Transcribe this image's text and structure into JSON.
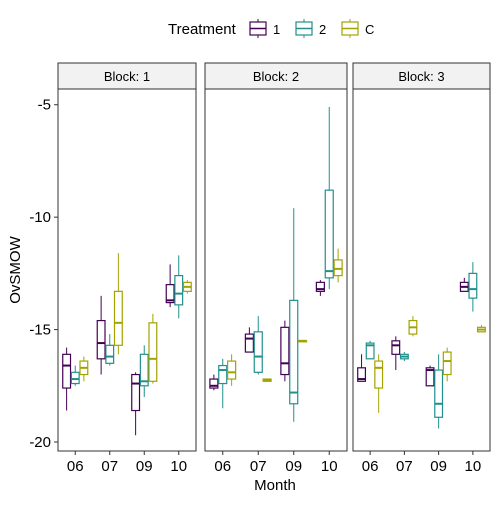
{
  "chart_data": {
    "type": "boxplot",
    "xlabel": "Month",
    "ylabel": "OvSMOW",
    "ylim": [
      -20.4,
      -4.3
    ],
    "y_ticks": [
      -5,
      -10,
      -15,
      -20
    ],
    "categories": [
      "06",
      "07",
      "09",
      "10"
    ],
    "legend": {
      "title": "Treatment",
      "position": "top",
      "entries": [
        {
          "name": "1",
          "color": "#440154"
        },
        {
          "name": "2",
          "color": "#21908C"
        },
        {
          "name": "C",
          "color": "#A3A300"
        }
      ]
    },
    "panels": [
      {
        "strip": "Block: 1",
        "boxes": [
          {
            "month": "06",
            "treatment": "1",
            "min": -18.6,
            "q1": -17.6,
            "median": -16.6,
            "q3": -16.1,
            "max": -15.8
          },
          {
            "month": "06",
            "treatment": "2",
            "min": -17.5,
            "q1": -17.4,
            "median": -17.2,
            "q3": -16.9,
            "max": -16.6
          },
          {
            "month": "06",
            "treatment": "C",
            "min": -17.3,
            "q1": -17.0,
            "median": -16.7,
            "q3": -16.4,
            "max": -16.2
          },
          {
            "month": "07",
            "treatment": "1",
            "min": -17.0,
            "q1": -16.3,
            "median": -15.6,
            "q3": -14.6,
            "max": -13.5
          },
          {
            "month": "07",
            "treatment": "2",
            "min": -16.6,
            "q1": -16.5,
            "median": -16.2,
            "q3": -15.7,
            "max": -15.2
          },
          {
            "month": "07",
            "treatment": "C",
            "min": -16.1,
            "q1": -15.7,
            "median": -14.7,
            "q3": -13.3,
            "max": -11.6
          },
          {
            "month": "09",
            "treatment": "1",
            "min": -19.7,
            "q1": -18.6,
            "median": -17.4,
            "q3": -17.0,
            "max": -16.9
          },
          {
            "month": "09",
            "treatment": "2",
            "min": -18.0,
            "q1": -17.5,
            "median": -17.3,
            "q3": -16.1,
            "max": -15.7
          },
          {
            "month": "09",
            "treatment": "C",
            "min": -17.4,
            "q1": -17.3,
            "median": -16.3,
            "q3": -14.7,
            "max": -14.3
          },
          {
            "month": "10",
            "treatment": "1",
            "min": -14.0,
            "q1": -13.8,
            "median": -13.7,
            "q3": -13.0,
            "max": -12.1
          },
          {
            "month": "10",
            "treatment": "2",
            "min": -14.5,
            "q1": -13.9,
            "median": -13.4,
            "q3": -12.6,
            "max": -11.7
          },
          {
            "month": "10",
            "treatment": "C",
            "min": -13.4,
            "q1": -13.3,
            "median": -13.1,
            "q3": -12.9,
            "max": -12.8
          }
        ]
      },
      {
        "strip": "Block: 2",
        "boxes": [
          {
            "month": "06",
            "treatment": "1",
            "min": -17.7,
            "q1": -17.6,
            "median": -17.5,
            "q3": -17.2,
            "max": -17.0
          },
          {
            "month": "06",
            "treatment": "2",
            "min": -18.5,
            "q1": -17.4,
            "median": -16.8,
            "q3": -16.6,
            "max": -16.3
          },
          {
            "month": "06",
            "treatment": "C",
            "min": -17.5,
            "q1": -17.2,
            "median": -16.9,
            "q3": -16.4,
            "max": -16.1
          },
          {
            "month": "07",
            "treatment": "1",
            "min": -16.0,
            "q1": -16.0,
            "median": -15.4,
            "q3": -15.2,
            "max": -14.9
          },
          {
            "month": "07",
            "treatment": "2",
            "min": -17.0,
            "q1": -16.9,
            "median": -16.2,
            "q3": -15.1,
            "max": -14.4
          },
          {
            "month": "07",
            "treatment": "C",
            "min": -17.3,
            "q1": -17.3,
            "median": -17.25,
            "q3": -17.2,
            "max": -17.2
          },
          {
            "month": "09",
            "treatment": "1",
            "min": -17.3,
            "q1": -17.0,
            "median": -16.5,
            "q3": -14.9,
            "max": -14.6
          },
          {
            "month": "09",
            "treatment": "2",
            "min": -19.1,
            "q1": -18.3,
            "median": -17.8,
            "q3": -13.7,
            "max": -9.6
          },
          {
            "month": "09",
            "treatment": "C",
            "min": -15.5,
            "q1": -15.5,
            "median": -15.5,
            "q3": -15.5,
            "max": -15.5
          },
          {
            "month": "10",
            "treatment": "1",
            "min": -13.5,
            "q1": -13.3,
            "median": -13.2,
            "q3": -12.9,
            "max": -12.8
          },
          {
            "month": "10",
            "treatment": "2",
            "min": -13.2,
            "q1": -12.7,
            "median": -12.4,
            "q3": -8.8,
            "max": -5.1
          },
          {
            "month": "10",
            "treatment": "C",
            "min": -12.9,
            "q1": -12.6,
            "median": -12.3,
            "q3": -11.9,
            "max": -11.4
          }
        ]
      },
      {
        "strip": "Block: 3",
        "boxes": [
          {
            "month": "06",
            "treatment": "1",
            "min": -17.3,
            "q1": -17.3,
            "median": -17.2,
            "q3": -16.7,
            "max": -16.1
          },
          {
            "month": "06",
            "treatment": "2",
            "min": -16.3,
            "q1": -16.3,
            "median": -15.7,
            "q3": -15.6,
            "max": -15.5
          },
          {
            "month": "06",
            "treatment": "C",
            "min": -18.7,
            "q1": -17.6,
            "median": -16.7,
            "q3": -16.4,
            "max": -16.1
          },
          {
            "month": "07",
            "treatment": "1",
            "min": -16.8,
            "q1": -16.1,
            "median": -15.7,
            "q3": -15.5,
            "max": -15.3
          },
          {
            "month": "07",
            "treatment": "2",
            "min": -16.4,
            "q1": -16.3,
            "median": -16.2,
            "q3": -16.1,
            "max": -16.0
          },
          {
            "month": "07",
            "treatment": "C",
            "min": -15.3,
            "q1": -15.2,
            "median": -14.9,
            "q3": -14.6,
            "max": -14.4
          },
          {
            "month": "09",
            "treatment": "1",
            "min": -17.5,
            "q1": -17.5,
            "median": -16.8,
            "q3": -16.7,
            "max": -16.6
          },
          {
            "month": "09",
            "treatment": "2",
            "min": -19.4,
            "q1": -18.9,
            "median": -18.3,
            "q3": -16.8,
            "max": -16.1
          },
          {
            "month": "09",
            "treatment": "C",
            "min": -17.3,
            "q1": -17.0,
            "median": -16.4,
            "q3": -16.0,
            "max": -15.8
          },
          {
            "month": "10",
            "treatment": "1",
            "min": -13.3,
            "q1": -13.3,
            "median": -13.1,
            "q3": -12.9,
            "max": -12.7
          },
          {
            "month": "10",
            "treatment": "2",
            "min": -14.2,
            "q1": -13.6,
            "median": -13.2,
            "q3": -12.5,
            "max": -12.0
          },
          {
            "month": "10",
            "treatment": "C",
            "min": -15.1,
            "q1": -15.1,
            "median": -15.0,
            "q3": -14.9,
            "max": -14.8
          }
        ]
      }
    ]
  }
}
